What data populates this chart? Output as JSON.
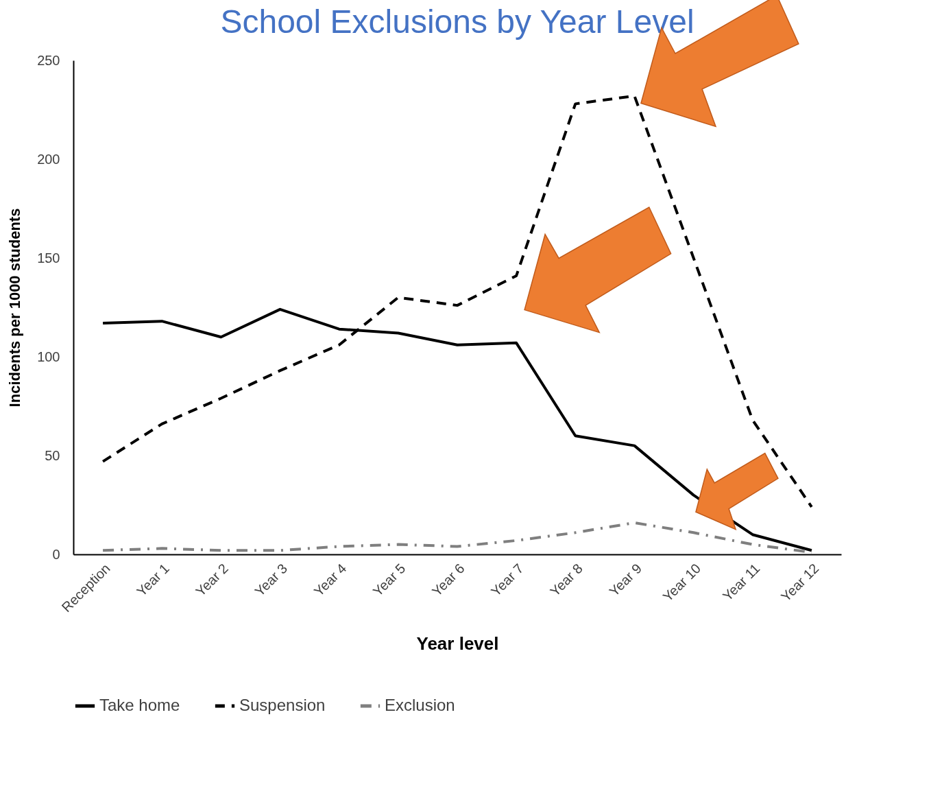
{
  "chart_data": {
    "type": "line",
    "title": "School Exclusions by Year Level",
    "xlabel": "Year level",
    "ylabel": "Incidents per 1000 students",
    "categories": [
      "Reception",
      "Year 1",
      "Year 2",
      "Year 3",
      "Year 4",
      "Year 5",
      "Year 6",
      "Year 7",
      "Year 8",
      "Year 9",
      "Year 10",
      "Year 11",
      "Year 12"
    ],
    "ylim": [
      0,
      250
    ],
    "yticks": [
      0,
      50,
      100,
      150,
      200,
      250
    ],
    "grid": false,
    "legend": "bottom",
    "marker": "none",
    "series": [
      {
        "name": "Take home",
        "color": "#000000",
        "line_style": "solid",
        "values": [
          117,
          118,
          110,
          124,
          114,
          112,
          106,
          107,
          60,
          55,
          30,
          10,
          2
        ]
      },
      {
        "name": "Suspension",
        "color": "#000000",
        "line_style": "dashed",
        "values": [
          47,
          66,
          79,
          93,
          106,
          130,
          126,
          141,
          228,
          232,
          150,
          68,
          24
        ]
      },
      {
        "name": "Exclusion",
        "color": "#7f7f7f",
        "line_style": "dashdot",
        "values": [
          2,
          3,
          2,
          2,
          4,
          5,
          4,
          7,
          11,
          16,
          11,
          5,
          1
        ]
      }
    ]
  }
}
